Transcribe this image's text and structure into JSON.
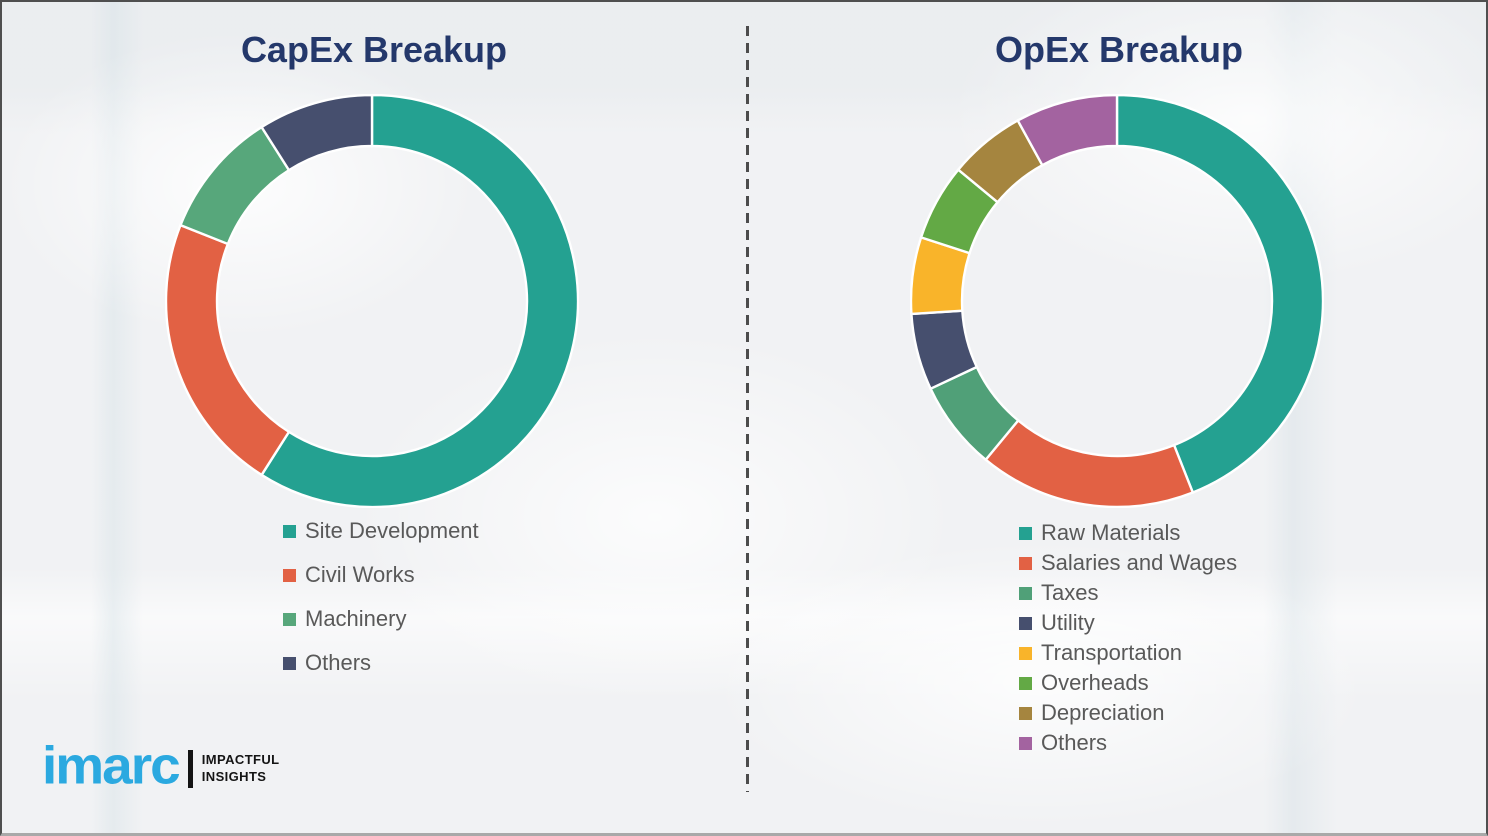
{
  "chart_data": [
    {
      "type": "pie",
      "subtype": "donut",
      "title": "CapEx Breakup",
      "unit": "%",
      "labels": [
        "Site Development",
        "Civil Works",
        "Machinery",
        "Others"
      ],
      "values": [
        59,
        22,
        10,
        9
      ],
      "colors": [
        "#24A191",
        "#E26144",
        "#57A77B",
        "#464F6E"
      ],
      "start_angle_deg": 0,
      "direction": "clockwise",
      "legend_position": "below-left",
      "data_labels_shown": false
    },
    {
      "type": "pie",
      "subtype": "donut",
      "title": "OpEx Breakup",
      "unit": "%",
      "labels": [
        "Raw Materials",
        "Salaries and Wages",
        "Taxes",
        "Utility",
        "Transportation",
        "Overheads",
        "Depreciation",
        "Others"
      ],
      "values": [
        44,
        17,
        7,
        6,
        6,
        6,
        6,
        8
      ],
      "colors": [
        "#24A191",
        "#E26144",
        "#50A078",
        "#464F6E",
        "#F9B42A",
        "#63A945",
        "#A5853F",
        "#A363A0"
      ],
      "start_angle_deg": 0,
      "direction": "clockwise",
      "legend_position": "below-left",
      "data_labels_shown": false
    }
  ],
  "logo": {
    "brand": "imarc",
    "tagline_line1": "IMPACTFUL",
    "tagline_line2": "INSIGHTS"
  },
  "colors": {
    "title_text": "#24386B",
    "legend_text": "#595959",
    "logo_blue": "#2BA9E0",
    "logo_black": "#141414",
    "divider": "#4C4C4C",
    "background": "#F1F2F4",
    "segment_gap": "#FFFFFF"
  }
}
